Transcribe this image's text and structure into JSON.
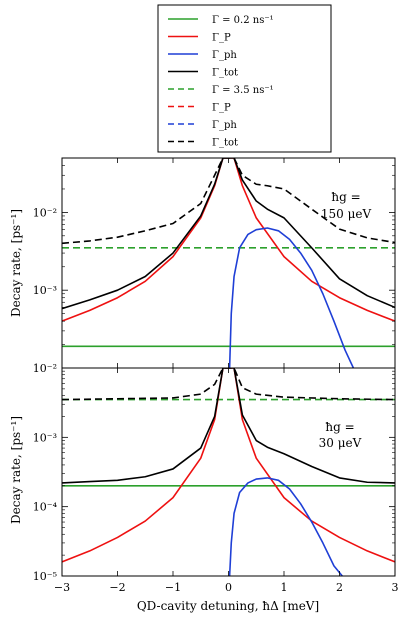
{
  "legend": {
    "entries": [
      {
        "label": "Γ = 0.2 ns⁻¹",
        "color": "#2ca02c",
        "dash": false
      },
      {
        "label": "Γ_P",
        "color": "#ee1111",
        "dash": false
      },
      {
        "label": "Γ_ph",
        "color": "#1f3fd6",
        "dash": false
      },
      {
        "label": "Γ_tot",
        "color": "#000000",
        "dash": false
      },
      {
        "label": "Γ = 3.5 ns⁻¹",
        "color": "#2ca02c",
        "dash": true
      },
      {
        "label": "Γ_P",
        "color": "#ee1111",
        "dash": true
      },
      {
        "label": "Γ_ph",
        "color": "#1f3fd6",
        "dash": true
      },
      {
        "label": "Γ_tot",
        "color": "#000000",
        "dash": true
      }
    ]
  },
  "chart_data": [
    {
      "type": "line",
      "annotation": [
        "ħg =",
        "150 μeV"
      ],
      "ylabel": "Decay rate, [ps⁻¹]",
      "xlabel": "",
      "yscale": "log",
      "xlim": [
        -3,
        3
      ],
      "ylim": [
        0.0001,
        0.05
      ],
      "xticks": [
        -3,
        -2,
        -1,
        0,
        1,
        2,
        3
      ],
      "yticks": [
        {
          "value": 0.001,
          "label": "10⁻³"
        },
        {
          "value": 0.01,
          "label": "10⁻²"
        }
      ],
      "series": [
        {
          "name": "Γ = 0.2 ns⁻¹",
          "color": "#2ca02c",
          "dash": false,
          "x": [
            -3,
            3
          ],
          "y": [
            0.00019,
            0.00019
          ]
        },
        {
          "name": "Γ = 3.5 ns⁻¹",
          "color": "#2ca02c",
          "dash": true,
          "x": [
            -3,
            3
          ],
          "y": [
            0.0035,
            0.0035
          ]
        },
        {
          "name": "Γ_P",
          "color": "#ee1111",
          "dash": false,
          "x": [
            -3,
            -2.5,
            -2,
            -1.5,
            -1,
            -0.5,
            -0.25,
            -0.1,
            0,
            0.1,
            0.25,
            0.5,
            1,
            1.5,
            2,
            2.5,
            3
          ],
          "y": [
            0.0004,
            0.00055,
            0.0008,
            0.0013,
            0.0027,
            0.0085,
            0.022,
            0.05,
            0.05,
            0.05,
            0.022,
            0.0085,
            0.0027,
            0.0013,
            0.0008,
            0.00055,
            0.0004
          ]
        },
        {
          "name": "Γ_ph",
          "color": "#1f3fd6",
          "dash": false,
          "x": [
            0.02,
            0.05,
            0.1,
            0.2,
            0.35,
            0.5,
            0.7,
            0.9,
            1.1,
            1.3,
            1.5,
            1.7,
            1.9,
            2.1,
            2.25
          ],
          "y": [
            0.0001,
            0.0005,
            0.0015,
            0.0035,
            0.0052,
            0.006,
            0.0063,
            0.0058,
            0.0045,
            0.003,
            0.0018,
            0.0009,
            0.0004,
            0.00017,
            0.0001
          ]
        },
        {
          "name": "Γ_tot",
          "color": "#000000",
          "dash": false,
          "x": [
            -3,
            -2.5,
            -2,
            -1.5,
            -1,
            -0.5,
            -0.25,
            -0.1,
            0,
            0.1,
            0.25,
            0.5,
            0.7,
            1,
            1.5,
            2,
            2.5,
            3
          ],
          "y": [
            0.00058,
            0.00075,
            0.001,
            0.0015,
            0.003,
            0.009,
            0.023,
            0.05,
            0.05,
            0.05,
            0.026,
            0.014,
            0.011,
            0.0085,
            0.0035,
            0.0014,
            0.00085,
            0.0006
          ]
        },
        {
          "name": "Γ_tot",
          "color": "#000000",
          "dash": true,
          "x": [
            -3,
            -2.5,
            -2,
            -1.5,
            -1,
            -0.5,
            -0.25,
            -0.1,
            0,
            0.1,
            0.25,
            0.5,
            0.7,
            1,
            1.5,
            2,
            2.5,
            3
          ],
          "y": [
            0.004,
            0.0043,
            0.0048,
            0.0058,
            0.0072,
            0.013,
            0.03,
            0.05,
            0.05,
            0.05,
            0.03,
            0.023,
            0.022,
            0.02,
            0.011,
            0.0061,
            0.0047,
            0.0041
          ]
        }
      ]
    },
    {
      "type": "line",
      "annotation": [
        "ħg =",
        "30 μeV"
      ],
      "ylabel": "Decay rate, [ps⁻¹]",
      "xlabel": "QD-cavity detuning, ħΔ [meV]",
      "yscale": "log",
      "xlim": [
        -3,
        3
      ],
      "ylim": [
        1e-05,
        0.01
      ],
      "xticks": [
        -3,
        -2,
        -1,
        0,
        1,
        2,
        3
      ],
      "xticklabels": [
        "−3",
        "−2",
        "−1",
        "0",
        "1",
        "2",
        "3"
      ],
      "yticks": [
        {
          "value": 1e-05,
          "label": "10⁻⁵"
        },
        {
          "value": 0.0001,
          "label": "10⁻⁴"
        },
        {
          "value": 0.001,
          "label": "10⁻³"
        },
        {
          "value": 0.01,
          "label": "10⁻²"
        }
      ],
      "series": [
        {
          "name": "Γ = 0.2 ns⁻¹",
          "color": "#2ca02c",
          "dash": false,
          "x": [
            -3,
            3
          ],
          "y": [
            0.0002,
            0.0002
          ]
        },
        {
          "name": "Γ = 3.5 ns⁻¹",
          "color": "#2ca02c",
          "dash": true,
          "x": [
            -3,
            3
          ],
          "y": [
            0.0035,
            0.0035
          ]
        },
        {
          "name": "Γ_P",
          "color": "#ee1111",
          "dash": false,
          "x": [
            -3,
            -2.5,
            -2,
            -1.5,
            -1,
            -0.5,
            -0.25,
            -0.1,
            0,
            0.1,
            0.25,
            0.5,
            1,
            1.5,
            2,
            2.5,
            3
          ],
          "y": [
            1.6e-05,
            2.3e-05,
            3.6e-05,
            6.2e-05,
            0.000135,
            0.0005,
            0.0018,
            0.01,
            0.01,
            0.01,
            0.0018,
            0.0005,
            0.000135,
            6.2e-05,
            3.6e-05,
            2.3e-05,
            1.6e-05
          ]
        },
        {
          "name": "Γ_ph",
          "color": "#1f3fd6",
          "dash": false,
          "x": [
            0.02,
            0.05,
            0.1,
            0.2,
            0.35,
            0.5,
            0.7,
            0.9,
            1.1,
            1.3,
            1.5,
            1.7,
            1.9,
            2.05
          ],
          "y": [
            1e-05,
            3e-05,
            8e-05,
            0.00016,
            0.00022,
            0.00025,
            0.00026,
            0.00024,
            0.00018,
            0.00011,
            6e-05,
            3e-05,
            1.4e-05,
            1e-05
          ]
        },
        {
          "name": "Γ_tot",
          "color": "#000000",
          "dash": false,
          "x": [
            -3,
            -2.5,
            -2,
            -1.5,
            -1,
            -0.5,
            -0.25,
            -0.1,
            0,
            0.1,
            0.25,
            0.5,
            0.7,
            1,
            1.5,
            2,
            2.5,
            3
          ],
          "y": [
            0.00022,
            0.00023,
            0.00024,
            0.00027,
            0.00035,
            0.0007,
            0.002,
            0.01,
            0.01,
            0.01,
            0.0021,
            0.0009,
            0.00072,
            0.00058,
            0.00038,
            0.00026,
            0.000225,
            0.00022
          ]
        },
        {
          "name": "Γ_tot",
          "color": "#000000",
          "dash": true,
          "x": [
            -3,
            -2,
            -1,
            -0.5,
            -0.25,
            -0.1,
            0,
            0.1,
            0.25,
            0.5,
            1,
            2,
            3
          ],
          "y": [
            0.0035,
            0.0036,
            0.0037,
            0.0042,
            0.0058,
            0.01,
            0.01,
            0.01,
            0.0052,
            0.0042,
            0.0038,
            0.0036,
            0.0035
          ]
        }
      ]
    }
  ]
}
